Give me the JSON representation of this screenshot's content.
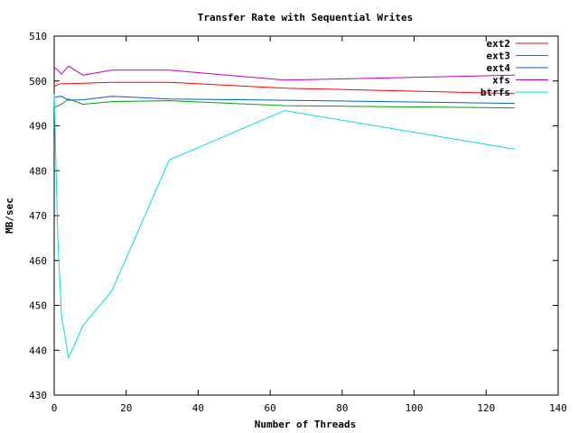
{
  "chart_data": {
    "type": "line",
    "title": "Transfer Rate with Sequential Writes",
    "xlabel": "Number of Threads",
    "ylabel": "MB/sec",
    "xlim": [
      0,
      140
    ],
    "ylim": [
      430,
      510
    ],
    "xticks": [
      0,
      20,
      40,
      60,
      80,
      100,
      120,
      140
    ],
    "yticks": [
      430,
      440,
      450,
      460,
      470,
      480,
      490,
      500,
      510
    ],
    "grid": false,
    "legend_position": "top-right",
    "series": [
      {
        "name": "ext2",
        "color": "#ff0000",
        "points": [
          [
            0,
            498.7
          ],
          [
            1,
            499.2
          ],
          [
            2,
            499.4
          ],
          [
            4,
            499.4
          ],
          [
            8,
            499.5
          ],
          [
            16,
            499.7
          ],
          [
            32,
            499.7
          ],
          [
            64,
            498.4
          ],
          [
            128,
            497.2
          ]
        ]
      },
      {
        "name": "ext3",
        "color": "#00a000",
        "points": [
          [
            0,
            494.1
          ],
          [
            1,
            494.4
          ],
          [
            2,
            494.8
          ],
          [
            4,
            496.0
          ],
          [
            8,
            494.8
          ],
          [
            16,
            495.4
          ],
          [
            32,
            495.6
          ],
          [
            64,
            494.5
          ],
          [
            128,
            494.0
          ]
        ]
      },
      {
        "name": "ext4",
        "color": "#0060c0",
        "points": [
          [
            0,
            496.3
          ],
          [
            1,
            496.5
          ],
          [
            2,
            496.6
          ],
          [
            4,
            495.7
          ],
          [
            8,
            495.8
          ],
          [
            16,
            496.6
          ],
          [
            32,
            496.0
          ],
          [
            64,
            495.7
          ],
          [
            128,
            495.0
          ]
        ]
      },
      {
        "name": "xfs",
        "color": "#c000c0",
        "points": [
          [
            0,
            503.0
          ],
          [
            1,
            502.4
          ],
          [
            2,
            501.5
          ],
          [
            4,
            503.3
          ],
          [
            8,
            501.3
          ],
          [
            16,
            502.4
          ],
          [
            32,
            502.4
          ],
          [
            64,
            500.2
          ],
          [
            128,
            501.3
          ]
        ]
      },
      {
        "name": "btrfs",
        "color": "#00e0e0",
        "points": [
          [
            0,
            497.0
          ],
          [
            1,
            465.0
          ],
          [
            2,
            448.0
          ],
          [
            4,
            438.3
          ],
          [
            8,
            445.5
          ],
          [
            16,
            453.2
          ],
          [
            32,
            482.4
          ],
          [
            64,
            493.4
          ],
          [
            128,
            484.8
          ]
        ]
      }
    ]
  }
}
